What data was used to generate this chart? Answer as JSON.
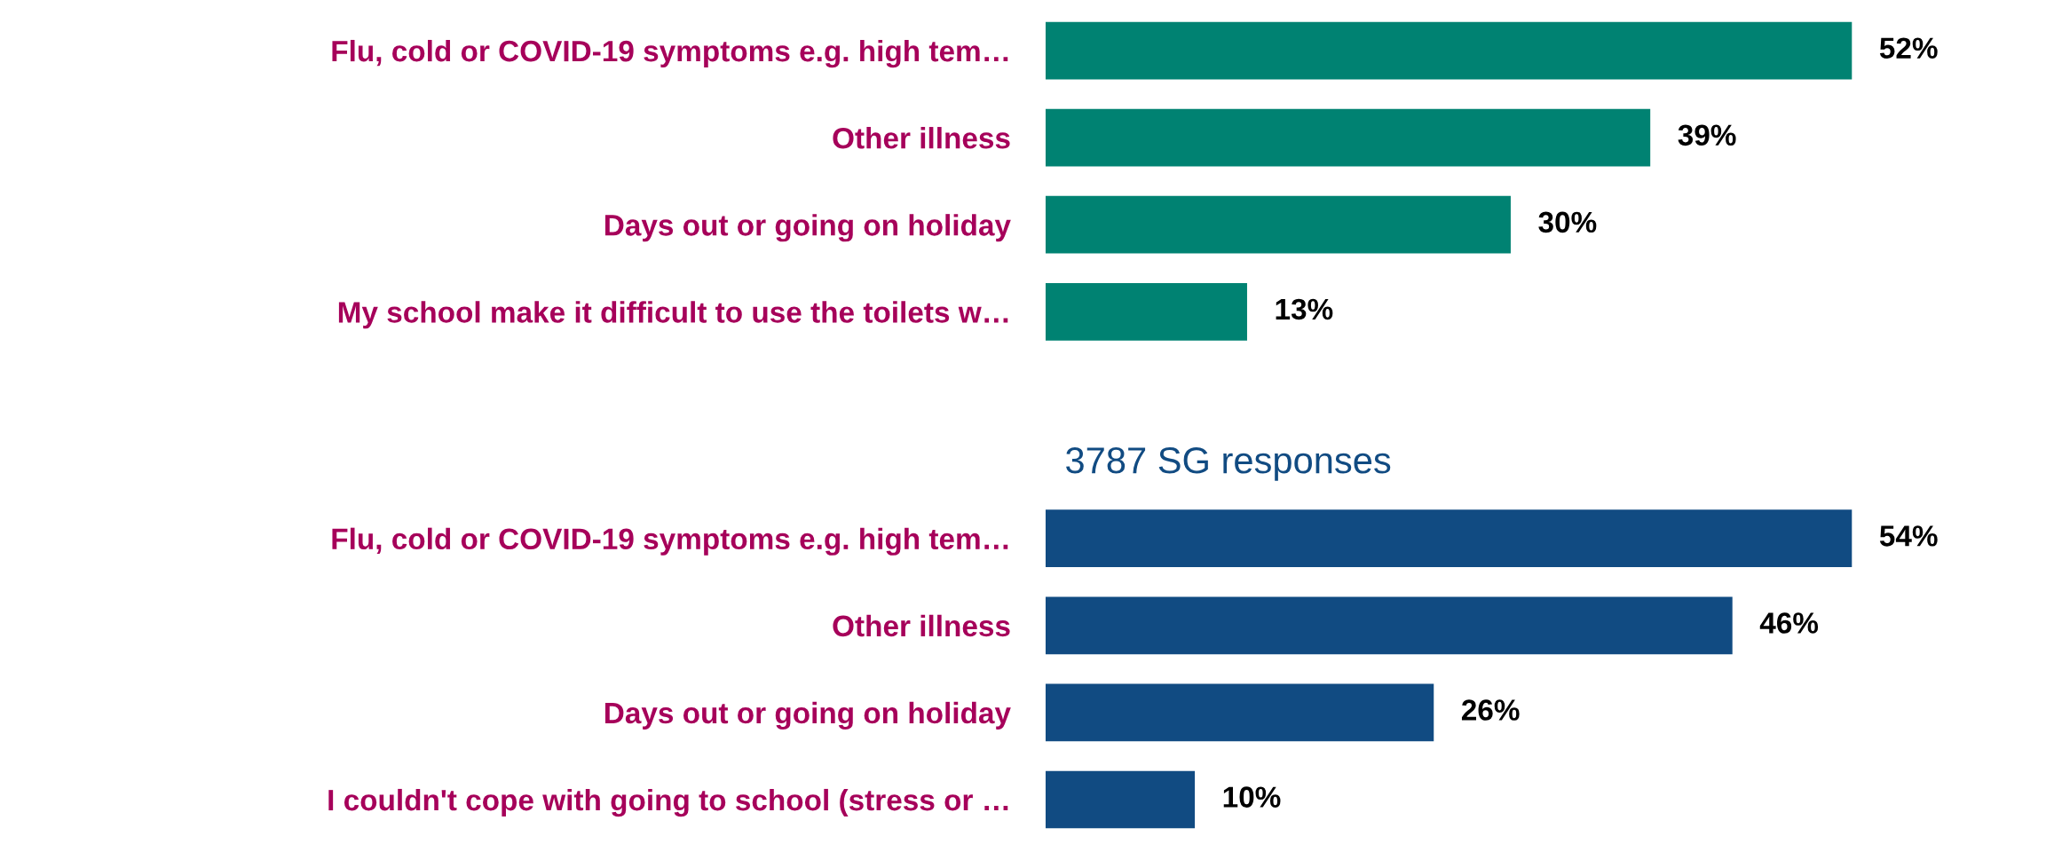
{
  "chart_data": [
    {
      "type": "bar",
      "orientation": "horizontal",
      "categories": [
        "Flu, cold or COVID-19 symptoms e.g. high tem…",
        "Other illness",
        "Days out or going on holiday",
        "My school make it difficult to use the toilets w…"
      ],
      "values": [
        52,
        39,
        30,
        13
      ],
      "color": "#008272",
      "data_labels": true,
      "value_labels": [
        "52%",
        "39%",
        "30%",
        "13%"
      ],
      "tick_labels": "y",
      "grid": false,
      "legend": false
    },
    {
      "type": "bar",
      "orientation": "horizontal",
      "title": "3787 SG responses",
      "categories": [
        "Flu, cold or COVID-19 symptoms e.g. high tem…",
        "Other illness",
        "Days out or going on holiday",
        "I couldn't cope with going to school (stress or …"
      ],
      "values": [
        54,
        46,
        26,
        10
      ],
      "color": "#114b82",
      "data_labels": true,
      "value_labels": [
        "54%",
        "46%",
        "26%",
        "10%"
      ],
      "tick_labels": "y",
      "grid": false,
      "legend": false
    }
  ]
}
